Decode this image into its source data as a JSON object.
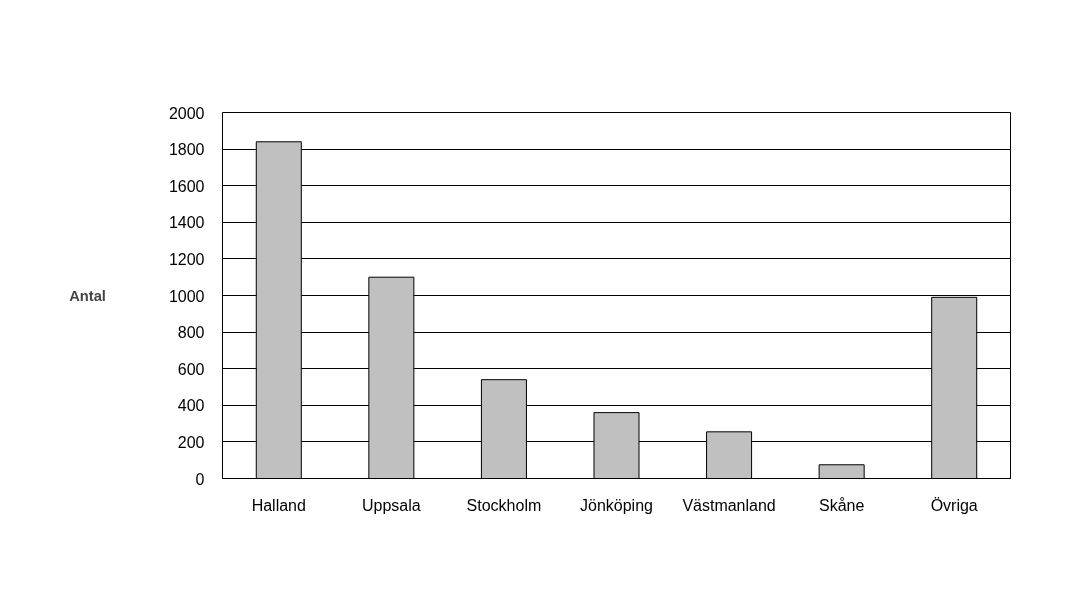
{
  "chart_data": {
    "type": "bar",
    "ylabel": "Antal",
    "categories": [
      "Halland",
      "Uppsala",
      "Stockholm",
      "Jönköping",
      "Västmanland",
      "Skåne",
      "Övriga"
    ],
    "values": [
      1840,
      1100,
      540,
      360,
      255,
      75,
      990
    ],
    "color": "#c0c0c0",
    "ylim": [
      0,
      2000
    ],
    "yticks": [
      0,
      200,
      400,
      600,
      800,
      1000,
      1200,
      1400,
      1600,
      1800,
      2000
    ],
    "grid": "y"
  }
}
